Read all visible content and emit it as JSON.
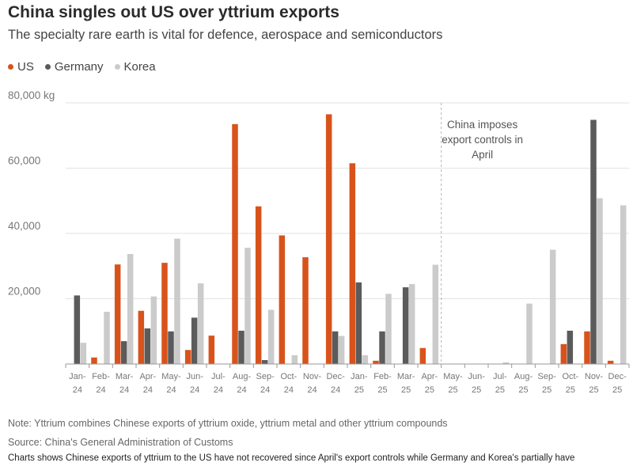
{
  "colors": {
    "us": "#d8531b",
    "germany": "#5b5b5b",
    "korea": "#cbcbcb",
    "grid": "#e2e2e2",
    "axis": "#9a9a9a",
    "text": "#777777"
  },
  "chart_data": {
    "type": "bar",
    "title": "China singles out US over yttrium exports",
    "subtitle": "The specialty rare earth is vital for defence, aerospace and semiconductors",
    "y_unit_label": "80,000 kg",
    "yticks": [
      0,
      20000,
      40000,
      60000,
      80000
    ],
    "ytick_labels": [
      "",
      "20,000",
      "40,000",
      "60,000",
      "80,000 kg"
    ],
    "ylim": [
      0,
      80000
    ],
    "categories": [
      {
        "month": "Jan-",
        "year": "24"
      },
      {
        "month": "Feb-",
        "year": "24"
      },
      {
        "month": "Mar-",
        "year": "24"
      },
      {
        "month": "Apr-",
        "year": "24"
      },
      {
        "month": "May-",
        "year": "24"
      },
      {
        "month": "Jun-",
        "year": "24"
      },
      {
        "month": "Jul-",
        "year": "24"
      },
      {
        "month": "Aug-",
        "year": "24"
      },
      {
        "month": "Sep-",
        "year": "24"
      },
      {
        "month": "Oct-",
        "year": "24"
      },
      {
        "month": "Nov-",
        "year": "24"
      },
      {
        "month": "Dec-",
        "year": "24"
      },
      {
        "month": "Jan-",
        "year": "25"
      },
      {
        "month": "Feb-",
        "year": "25"
      },
      {
        "month": "Mar-",
        "year": "25"
      },
      {
        "month": "Apr-",
        "year": "25"
      },
      {
        "month": "May-",
        "year": "25"
      },
      {
        "month": "Jun-",
        "year": "25"
      },
      {
        "month": "Jul-",
        "year": "25"
      },
      {
        "month": "Aug-",
        "year": "25"
      },
      {
        "month": "Sep-",
        "year": "25"
      },
      {
        "month": "Oct-",
        "year": "25"
      },
      {
        "month": "Nov-",
        "year": "25"
      },
      {
        "month": "Dec-",
        "year": "25"
      }
    ],
    "series": [
      {
        "name": "US",
        "color_key": "us",
        "values": [
          0,
          2000,
          30500,
          16300,
          31000,
          4300,
          8700,
          73500,
          48300,
          39400,
          32700,
          76500,
          61500,
          1000,
          0,
          4900,
          0,
          0,
          0,
          0,
          0,
          6100,
          10000,
          1000
        ]
      },
      {
        "name": "Germany",
        "color_key": "germany",
        "values": [
          21000,
          0,
          7000,
          10900,
          10000,
          14200,
          0,
          10200,
          1200,
          0,
          0,
          10000,
          25000,
          10000,
          23500,
          0,
          0,
          0,
          0,
          0,
          0,
          10200,
          74800,
          0
        ]
      },
      {
        "name": "Korea",
        "color_key": "korea",
        "values": [
          6500,
          16000,
          33700,
          20700,
          38400,
          24700,
          0,
          35600,
          16600,
          2700,
          0,
          8600,
          2700,
          21500,
          24500,
          30400,
          0,
          0,
          500,
          18500,
          35000,
          0,
          50800,
          48600
        ]
      }
    ],
    "annotation": {
      "lines": [
        "China imposes",
        "export controls in",
        "April"
      ],
      "at_category_boundary": "Apr-25 / May-25"
    },
    "legend_position": "top-left",
    "grid": true
  },
  "legend": [
    {
      "label": "US",
      "color_key": "us"
    },
    {
      "label": "Germany",
      "color_key": "germany"
    },
    {
      "label": "Korea",
      "color_key": "korea"
    }
  ],
  "note": "Note: Yttrium combines Chinese exports of yttrium oxide, yttrium metal and other yttrium compounds",
  "source": "Source: China's General Administration of Customs",
  "caption": "Charts shows Chinese exports of yttrium to the US have not recovered since April's export controls while Germany and Korea's partially have"
}
